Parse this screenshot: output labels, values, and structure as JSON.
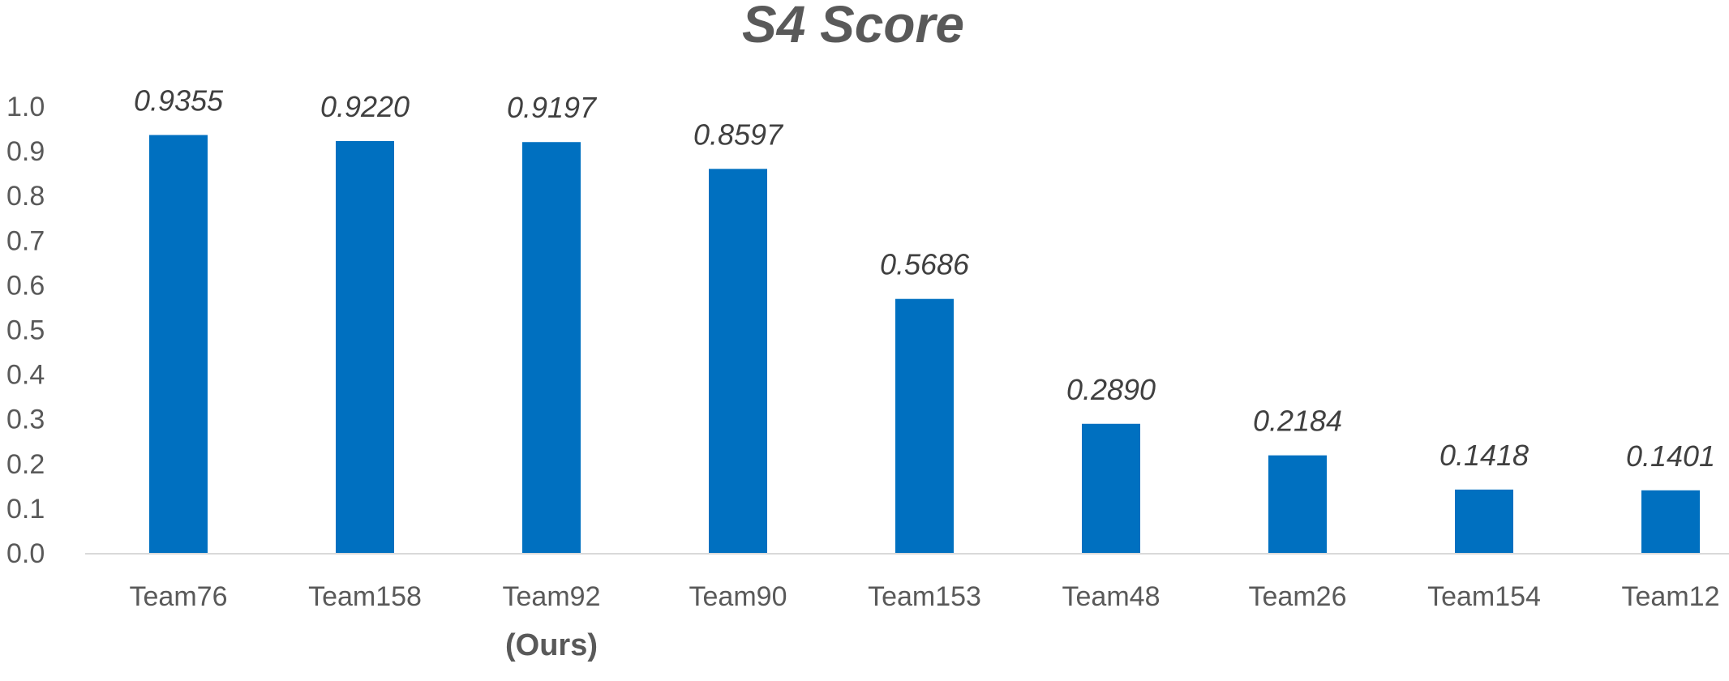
{
  "chart_data": {
    "type": "bar",
    "title": "S4 Score",
    "xlabel": "",
    "ylabel": "",
    "categories": [
      "Team76",
      "Team158",
      "Team92",
      "Team90",
      "Team153",
      "Team48",
      "Team26",
      "Team154",
      "Team12"
    ],
    "category_notes": [
      "",
      "",
      "(Ours)",
      "",
      "",
      "",
      "",
      "",
      ""
    ],
    "values": [
      0.9355,
      0.922,
      0.9197,
      0.8597,
      0.5686,
      0.289,
      0.2184,
      0.1418,
      0.1401
    ],
    "data_labels": [
      "0.9355",
      "0.9220",
      "0.9197",
      "0.8597",
      "0.5686",
      "0.2890",
      "0.2184",
      "0.1418",
      "0.1401"
    ],
    "yticks": [
      "0.0",
      "0.1",
      "0.2",
      "0.3",
      "0.4",
      "0.5",
      "0.6",
      "0.7",
      "0.8",
      "0.9",
      "1.0"
    ],
    "ylim": [
      0,
      1.0
    ],
    "grid": false,
    "legend": "none",
    "bar_color": "#0070C0",
    "axis_color": "#D9D9D9"
  }
}
